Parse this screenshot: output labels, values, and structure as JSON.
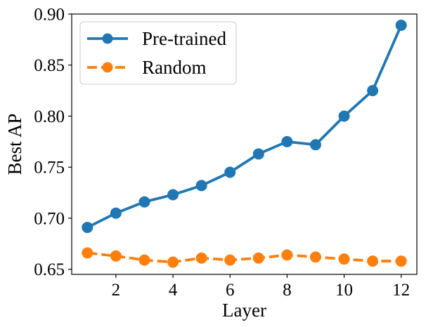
{
  "chart_data": {
    "type": "line",
    "title": "",
    "xlabel": "Layer",
    "ylabel": "Best AP",
    "xlim": [
      0.45,
      12.55
    ],
    "ylim": [
      0.645,
      0.9
    ],
    "x_ticks": [
      2,
      4,
      6,
      8,
      10,
      12
    ],
    "y_ticks": [
      0.65,
      0.7,
      0.75,
      0.8,
      0.85,
      0.9
    ],
    "x_tick_labels": [
      "2",
      "4",
      "6",
      "8",
      "10",
      "12"
    ],
    "y_tick_labels": [
      "0.65",
      "0.70",
      "0.75",
      "0.80",
      "0.85",
      "0.90"
    ],
    "grid": false,
    "legend_position": "upper-left",
    "x": [
      1,
      2,
      3,
      4,
      5,
      6,
      7,
      8,
      9,
      10,
      11,
      12
    ],
    "series": [
      {
        "name": "Pre-trained",
        "color": "#1f77b4",
        "line_style": "solid",
        "marker": "circle",
        "values": [
          0.691,
          0.705,
          0.716,
          0.723,
          0.732,
          0.745,
          0.763,
          0.775,
          0.772,
          0.8,
          0.825,
          0.889
        ]
      },
      {
        "name": "Random",
        "color": "#ff7f0e",
        "line_style": "dashed",
        "marker": "circle",
        "values": [
          0.666,
          0.663,
          0.659,
          0.657,
          0.661,
          0.659,
          0.661,
          0.664,
          0.662,
          0.66,
          0.658,
          0.658
        ]
      }
    ]
  }
}
